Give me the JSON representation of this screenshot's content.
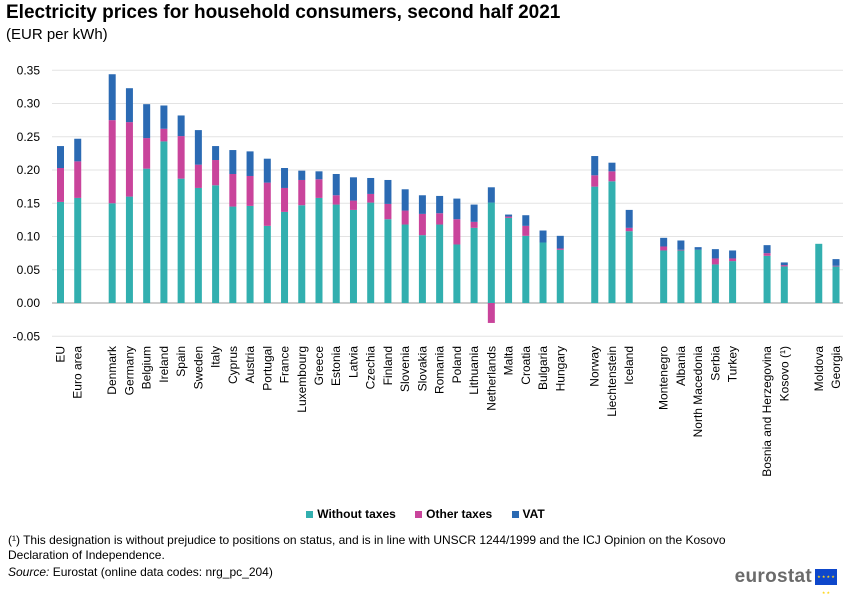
{
  "chart_data": {
    "type": "bar",
    "stacked": true,
    "title": "Electricity prices for household consumers, second half 2021",
    "subtitle": "(EUR per kWh)",
    "ylim": [
      -0.05,
      0.35
    ],
    "yticks": [
      "0.35",
      "0.30",
      "0.25",
      "0.20",
      "0.15",
      "0.10",
      "0.05",
      "0.00",
      "-0.05"
    ],
    "ytick_values": [
      0.35,
      0.3,
      0.25,
      0.2,
      0.15,
      0.1,
      0.05,
      0.0,
      -0.05
    ],
    "grid": true,
    "legend_position": "bottom",
    "groups": [
      2,
      27,
      3,
      5,
      2,
      2
    ],
    "categories": [
      "EU",
      "Euro area",
      "Denmark",
      "Germany",
      "Belgium",
      "Ireland",
      "Spain",
      "Sweden",
      "Italy",
      "Cyprus",
      "Austria",
      "Portugal",
      "France",
      "Luxembourg",
      "Greece",
      "Estonia",
      "Latvia",
      "Czechia",
      "Finland",
      "Slovenia",
      "Slovakia",
      "Romania",
      "Poland",
      "Lithuania",
      "Netherlands",
      "Malta",
      "Croatia",
      "Bulgaria",
      "Hungary",
      "Norway",
      "Liechtenstein",
      "Iceland",
      "Montenegro",
      "Albania",
      "North Macedonia",
      "Serbia",
      "Turkey",
      "Bosnia and Herzegovina",
      "Kosovo (¹)",
      "Moldova",
      "Georgia"
    ],
    "series": [
      {
        "name": "Without taxes",
        "color": "#32afaf",
        "values": [
          0.152,
          0.158,
          0.15,
          0.16,
          0.202,
          0.243,
          0.187,
          0.173,
          0.177,
          0.145,
          0.146,
          0.116,
          0.137,
          0.147,
          0.158,
          0.148,
          0.14,
          0.151,
          0.126,
          0.118,
          0.102,
          0.118,
          0.088,
          0.113,
          0.151,
          0.128,
          0.101,
          0.091,
          0.08,
          0.175,
          0.183,
          0.108,
          0.079,
          0.079,
          0.08,
          0.058,
          0.063,
          0.071,
          0.055,
          0.089,
          0.055
        ]
      },
      {
        "name": "Other taxes",
        "color": "#c9449b",
        "values": [
          0.051,
          0.055,
          0.125,
          0.112,
          0.046,
          0.019,
          0.064,
          0.035,
          0.038,
          0.049,
          0.045,
          0.065,
          0.036,
          0.038,
          0.028,
          0.014,
          0.014,
          0.013,
          0.023,
          0.021,
          0.032,
          0.017,
          0.038,
          0.009,
          -0.03,
          0.002,
          0.015,
          0.0,
          0.002,
          0.017,
          0.015,
          0.005,
          0.006,
          0.001,
          0.0,
          0.009,
          0.004,
          0.004,
          0.002,
          0.0,
          0.001
        ]
      },
      {
        "name": "VAT",
        "color": "#2b6ab3",
        "values": [
          0.033,
          0.034,
          0.069,
          0.051,
          0.051,
          0.035,
          0.031,
          0.052,
          0.021,
          0.036,
          0.037,
          0.036,
          0.03,
          0.014,
          0.012,
          0.032,
          0.035,
          0.024,
          0.036,
          0.032,
          0.028,
          0.026,
          0.031,
          0.026,
          0.023,
          0.003,
          0.016,
          0.018,
          0.019,
          0.029,
          0.013,
          0.027,
          0.013,
          0.014,
          0.004,
          0.014,
          0.012,
          0.012,
          0.004,
          0.0,
          0.01
        ]
      }
    ]
  },
  "legend": {
    "without_taxes": "Without taxes",
    "other_taxes": "Other taxes",
    "vat": "VAT",
    "colors": {
      "without_taxes": "#32afaf",
      "other_taxes": "#c9449b",
      "vat": "#2b6ab3"
    }
  },
  "footnote": "(¹) This designation is without prejudice to positions on status, and is in line with UNSCR 1244/1999 and the ICJ Opinion on the Kosovo Declaration of Independence.",
  "source": {
    "label": "Source:",
    "text": "Eurostat (online data codes: nrg_pc_204)"
  },
  "logo": {
    "text": "eurostat",
    "icon": "eu-flag-icon"
  }
}
